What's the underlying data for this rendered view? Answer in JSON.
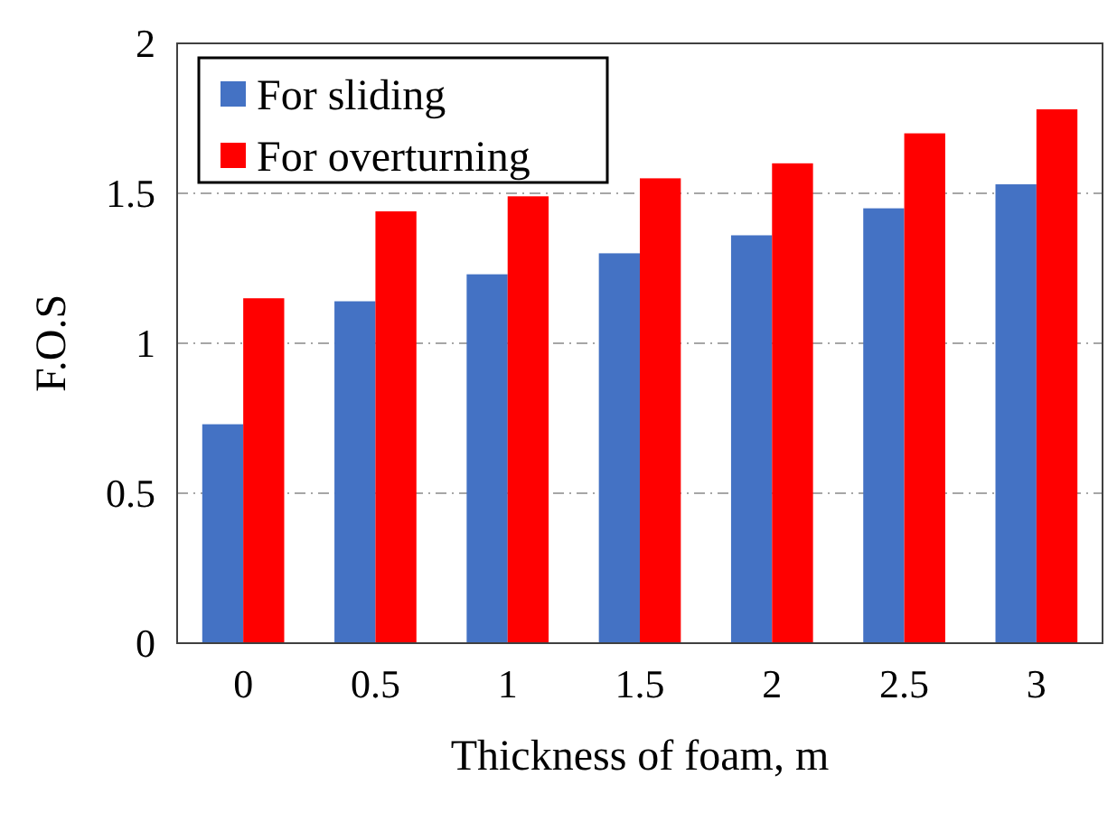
{
  "chart_data": {
    "type": "bar",
    "xlabel": "Thickness of foam, m",
    "ylabel": "F.O.S",
    "categories": [
      "0",
      "0.5",
      "1",
      "1.5",
      "2",
      "2.5",
      "3"
    ],
    "series": [
      {
        "name": "For sliding",
        "color": "#4472c4",
        "values": [
          0.73,
          1.14,
          1.23,
          1.3,
          1.36,
          1.45,
          1.53
        ]
      },
      {
        "name": "For overturning",
        "color": "#ff0000",
        "values": [
          1.15,
          1.44,
          1.49,
          1.55,
          1.6,
          1.7,
          1.78
        ]
      }
    ],
    "ylim": [
      0,
      2
    ],
    "yticks": [
      0,
      0.5,
      1,
      1.5,
      2
    ],
    "grid": "y",
    "legend": "top left"
  }
}
